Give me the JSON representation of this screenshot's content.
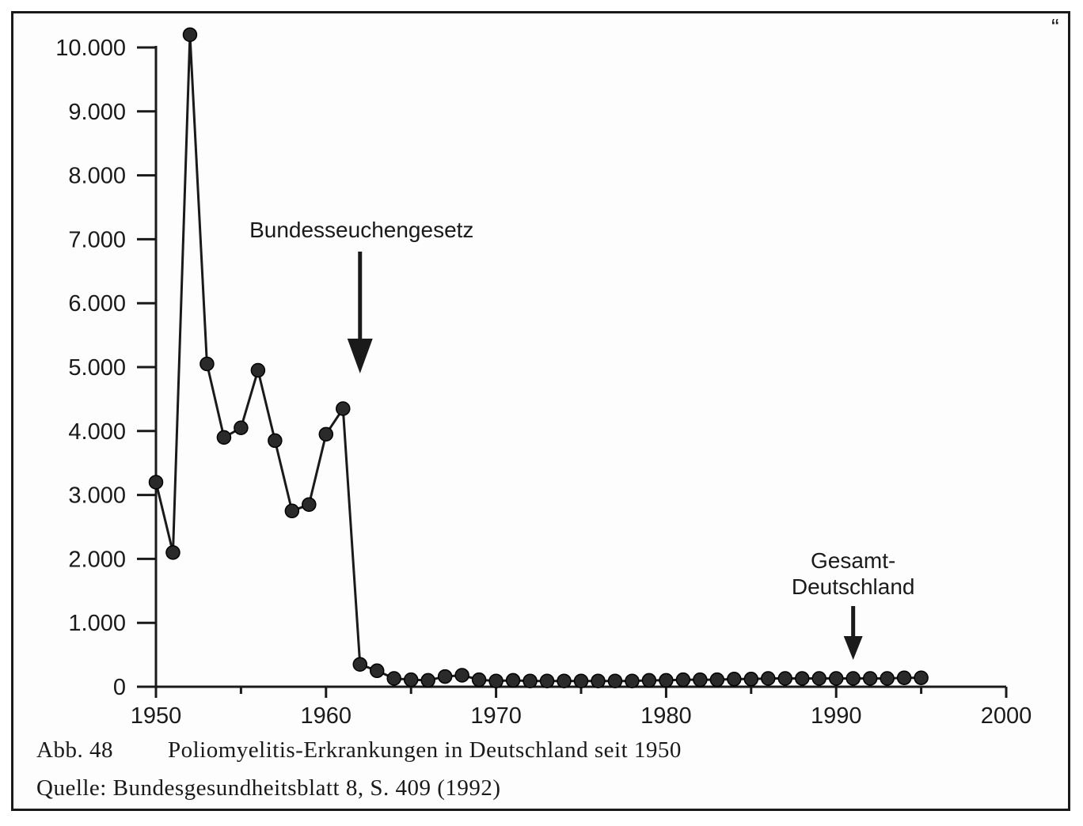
{
  "chart_data": {
    "type": "line",
    "title": "",
    "xlabel": "",
    "ylabel": "",
    "xlim": [
      1950,
      2000
    ],
    "ylim": [
      0,
      10000
    ],
    "x_ticks": [
      1950,
      1960,
      1970,
      1980,
      1990,
      2000
    ],
    "x_tick_labels": [
      "1950",
      "1960",
      "1970",
      "1980",
      "1990",
      "2000"
    ],
    "y_ticks": [
      0,
      1000,
      2000,
      3000,
      4000,
      5000,
      6000,
      7000,
      8000,
      9000,
      10000
    ],
    "y_tick_labels": [
      "0",
      "1.000",
      "2.000",
      "3.000",
      "4.000",
      "5.000",
      "6.000",
      "7.000",
      "8.000",
      "9.000",
      "10.000"
    ],
    "grid": false,
    "marker": "circle",
    "series": [
      {
        "name": "",
        "color": "#1a1a1a",
        "x": [
          1950,
          1951,
          1952,
          1953,
          1954,
          1955,
          1956,
          1957,
          1958,
          1959,
          1960,
          1961,
          1962,
          1963,
          1964,
          1965,
          1966,
          1967,
          1968,
          1969,
          1970,
          1971,
          1972,
          1973,
          1974,
          1975,
          1976,
          1977,
          1978,
          1979,
          1980,
          1981,
          1982,
          1983,
          1984,
          1985,
          1986,
          1987,
          1988,
          1989,
          1990,
          1991,
          1992,
          1993,
          1994,
          1995
        ],
        "y": [
          3200,
          2100,
          10200,
          5050,
          3900,
          4050,
          4950,
          3850,
          2750,
          2850,
          3950,
          4350,
          350,
          250,
          130,
          110,
          100,
          160,
          180,
          110,
          90,
          100,
          90,
          90,
          90,
          90,
          90,
          90,
          90,
          100,
          100,
          110,
          110,
          110,
          120,
          120,
          130,
          130,
          130,
          130,
          130,
          130,
          130,
          130,
          140,
          140
        ]
      }
    ],
    "annotations": [
      {
        "text": "Bundesseuchengesetz",
        "x": 1962,
        "arrow": "down"
      },
      {
        "text_lines": [
          "Gesamt-",
          "Deutschland"
        ],
        "x": 1991,
        "arrow": "down"
      }
    ]
  },
  "caption": {
    "figure_number": "Abb. 48",
    "figure_text": "Poliomyelitis-Erkrankungen in Deutschland seit 1950",
    "source": "Quelle: Bundesgesundheitsblatt 8, S. 409 (1992)"
  },
  "corner_mark": "“"
}
